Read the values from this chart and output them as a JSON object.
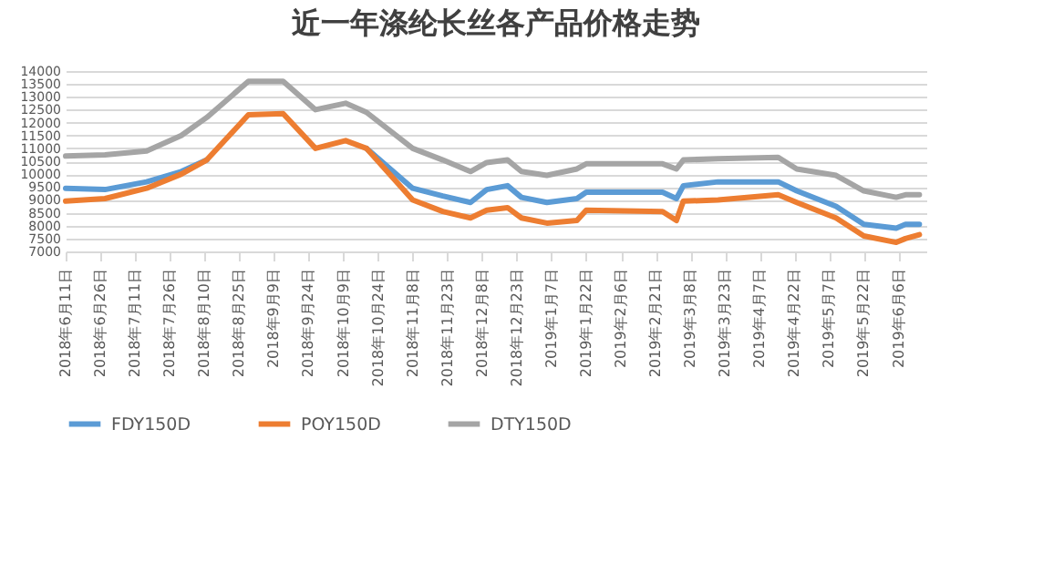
{
  "chart_data": {
    "type": "line",
    "title": "近一年涤纶长丝各产品价格走势",
    "x": [
      "2018-06-11",
      "2018-06-28",
      "2018-07-16",
      "2018-07-31",
      "2018-08-11",
      "2018-08-29",
      "2018-09-13",
      "2018-09-27",
      "2018-10-10",
      "2018-10-19",
      "2018-11-08",
      "2018-11-21",
      "2018-12-03",
      "2018-12-10",
      "2018-12-19",
      "2018-12-25",
      "2019-01-05",
      "2019-01-18",
      "2019-01-22",
      "2019-02-24",
      "2019-03-02",
      "2019-03-05",
      "2019-03-20",
      "2019-04-15",
      "2019-04-23",
      "2019-05-10",
      "2019-05-22",
      "2019-06-05",
      "2019-06-09",
      "2019-06-15"
    ],
    "series": [
      {
        "name": "FDY150D",
        "color": "#5b9bd5",
        "values": [
          9450,
          9400,
          9700,
          10100,
          10550,
          null,
          null,
          null,
          null,
          11000,
          9450,
          9150,
          8900,
          9400,
          9550,
          9100,
          8900,
          9050,
          9300,
          9300,
          9050,
          9550,
          9700,
          9700,
          9350,
          8750,
          8050,
          7900,
          8050,
          8050
        ]
      },
      {
        "name": "POY150D",
        "color": "#ed7d31",
        "values": [
          8950,
          9050,
          9450,
          10000,
          10550,
          12300,
          12350,
          11000,
          11300,
          11000,
          9000,
          8550,
          8300,
          8600,
          8700,
          8300,
          8100,
          8200,
          8600,
          8550,
          8200,
          8950,
          9000,
          9200,
          8900,
          8300,
          7600,
          7350,
          7500,
          7650
        ]
      },
      {
        "name": "DTY150D",
        "color": "#a5a5a5",
        "values": [
          10700,
          10750,
          10900,
          11500,
          12200,
          13600,
          13600,
          12500,
          12750,
          12400,
          11000,
          10550,
          10100,
          10450,
          10550,
          10100,
          9950,
          10200,
          10400,
          10400,
          10200,
          10550,
          10600,
          10650,
          10200,
          9950,
          9350,
          9100,
          9200,
          9200
        ]
      }
    ],
    "xlim": [
      "2018-06-11",
      "2019-06-18"
    ],
    "xticks": [
      {
        "value": "2018-06-11",
        "label": "2018年6月11日"
      },
      {
        "value": "2018-06-26",
        "label": "2018年6月26日"
      },
      {
        "value": "2018-07-11",
        "label": "2018年7月11日"
      },
      {
        "value": "2018-07-26",
        "label": "2018年7月26日"
      },
      {
        "value": "2018-08-10",
        "label": "2018年8月10日"
      },
      {
        "value": "2018-08-25",
        "label": "2018年8月25日"
      },
      {
        "value": "2018-09-09",
        "label": "2018年9月9日"
      },
      {
        "value": "2018-09-24",
        "label": "2018年9月24日"
      },
      {
        "value": "2018-10-09",
        "label": "2018年10月9日"
      },
      {
        "value": "2018-10-24",
        "label": "2018年10月24日"
      },
      {
        "value": "2018-11-08",
        "label": "2018年11月8日"
      },
      {
        "value": "2018-11-23",
        "label": "2018年11月23日"
      },
      {
        "value": "2018-12-08",
        "label": "2018年12月8日"
      },
      {
        "value": "2018-12-23",
        "label": "2018年12月23日"
      },
      {
        "value": "2019-01-07",
        "label": "2019年1月7日"
      },
      {
        "value": "2019-01-22",
        "label": "2019年1月22日"
      },
      {
        "value": "2019-02-06",
        "label": "2019年2月6日"
      },
      {
        "value": "2019-02-21",
        "label": "2019年2月21日"
      },
      {
        "value": "2019-03-08",
        "label": "2019年3月8日"
      },
      {
        "value": "2019-03-23",
        "label": "2019年3月23日"
      },
      {
        "value": "2019-04-07",
        "label": "2019年4月7日"
      },
      {
        "value": "2019-04-22",
        "label": "2019年4月22日"
      },
      {
        "value": "2019-05-07",
        "label": "2019年5月7日"
      },
      {
        "value": "2019-05-22",
        "label": "2019年5月22日"
      },
      {
        "value": "2019-06-06",
        "label": "2019年6月6日"
      }
    ],
    "ylim": [
      7000,
      14000
    ],
    "yticks": [
      7000,
      7500,
      8000,
      8500,
      9000,
      9500,
      10000,
      10500,
      11000,
      11500,
      12000,
      12500,
      13000,
      13500,
      14000
    ],
    "grid": "y",
    "legend": "bottom",
    "marker": "none",
    "line_style": "solid"
  }
}
